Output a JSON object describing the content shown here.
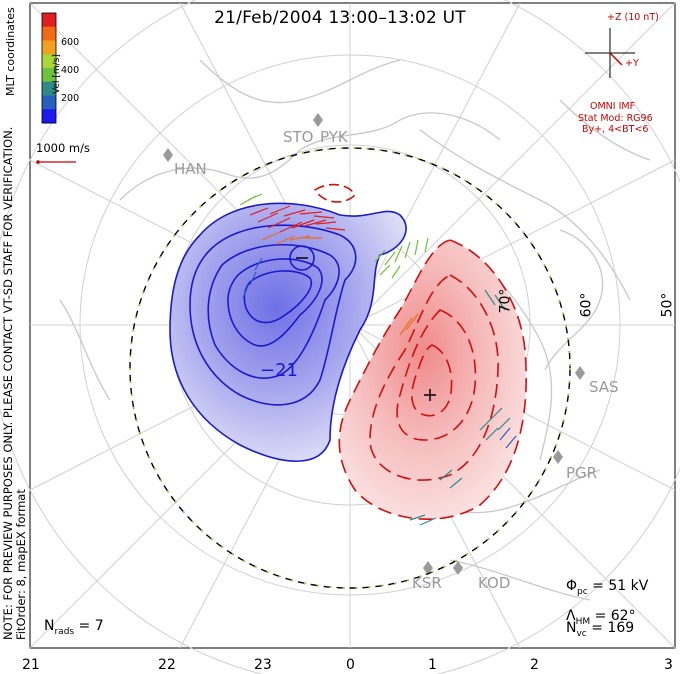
{
  "title": "21/Feb/2004 13:00–13:02 UT",
  "coordinates_label": "MLT coordinates",
  "note_line1": "NOTE: FOR PREVIEW PURPOSES ONLY. PLEASE CONTACT VT-SD STAFF FOR VERIFICATION.",
  "note_line2": "FitOrder: 8, mapEX format",
  "colorbar": {
    "unit": "Vel [m/s]",
    "ticks": [
      "600",
      "400",
      "200"
    ],
    "colors": [
      "#1a1aee",
      "#2a5fbf",
      "#2f8a8a",
      "#6cc23a",
      "#a8d838",
      "#f2a020",
      "#f06a1a",
      "#e02020"
    ]
  },
  "reference_vector": "1000 m/s",
  "imf": {
    "axis_z": "+Z (10 nT)",
    "axis_y": "+Y",
    "source": "OMNI IMF",
    "model": "Stat Mod: RG96",
    "condition": "By+, 4<BT<6"
  },
  "stats": {
    "phi_pc": "51 kV",
    "lambda_hm": "62°",
    "n_vc": "169",
    "n_rads": "7"
  },
  "mlt_ticks": [
    "21",
    "22",
    "23",
    "0",
    "1",
    "2",
    "3"
  ],
  "lat_labels": [
    "70°",
    "60°",
    "50°"
  ],
  "sites": [
    "STO",
    "PYK",
    "HAN",
    "SAS",
    "PGR",
    "KSR",
    "KOD"
  ],
  "contours": {
    "min_label": "−",
    "max_label": "+",
    "inner_label": "−21"
  },
  "colors": {
    "negative_cell": "#1a1acc",
    "positive_cell": "#d01010",
    "hmb": "#000000",
    "land": "#c8c8c8",
    "grid": "#d0d0d0"
  }
}
